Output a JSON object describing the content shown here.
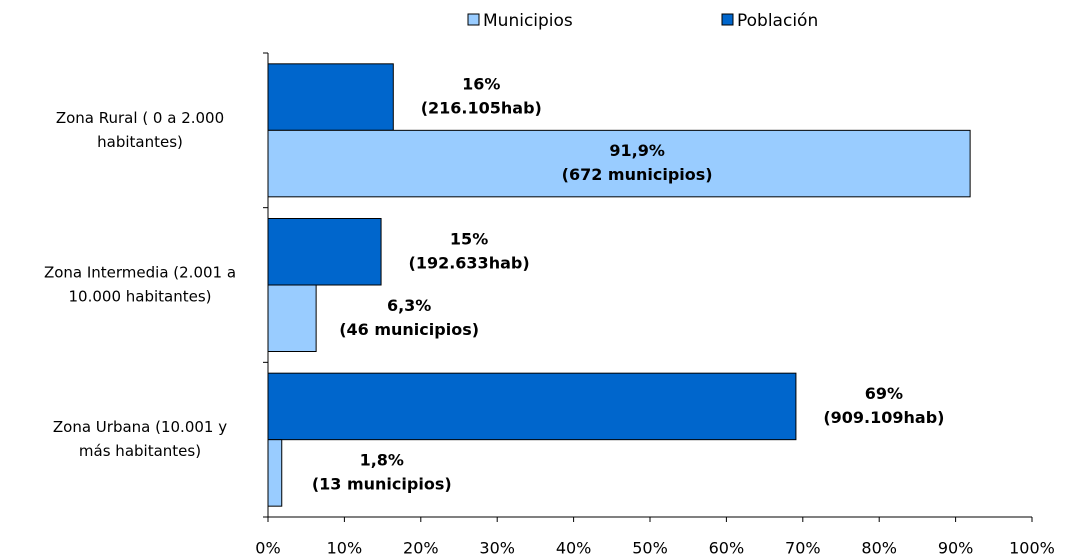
{
  "chart_data": {
    "type": "hbar",
    "categories": [
      [
        "Zona Rural ( 0 a 2.000",
        "habitantes)"
      ],
      [
        "Zona Intermedia (2.001 a",
        "10.000 habitantes)"
      ],
      [
        "Zona Urbana (10.001 y",
        "más habitantes)"
      ]
    ],
    "series": [
      {
        "name": "Población",
        "color": "#0066cc",
        "values": [
          16.4,
          14.8,
          69.1
        ],
        "value_labels": [
          [
            "16%",
            "(216.105hab)"
          ],
          [
            "15%",
            "(192.633hab)"
          ],
          [
            "69%",
            "(909.109hab)"
          ]
        ]
      },
      {
        "name": "Municipios",
        "color": "#99ccff",
        "values": [
          91.9,
          6.3,
          1.8
        ],
        "value_labels": [
          [
            "91,9%",
            "(672 municipios)"
          ],
          [
            "6,3%",
            "(46 municipios)"
          ],
          [
            "1,8%",
            "(13 municipios)"
          ]
        ]
      }
    ],
    "legend_order": [
      1,
      0
    ],
    "xlim": [
      0,
      100
    ],
    "xticks": [
      {
        "value": 0,
        "label": "0%"
      },
      {
        "value": 10,
        "label": "10%"
      },
      {
        "value": 20,
        "label": "20%"
      },
      {
        "value": 30,
        "label": "30%"
      },
      {
        "value": 40,
        "label": "40%"
      },
      {
        "value": 50,
        "label": "50%"
      },
      {
        "value": 60,
        "label": "60%"
      },
      {
        "value": 70,
        "label": "70%"
      },
      {
        "value": 80,
        "label": "80%"
      },
      {
        "value": 90,
        "label": "90%"
      },
      {
        "value": 100,
        "label": "100%"
      }
    ],
    "legend": "top"
  }
}
